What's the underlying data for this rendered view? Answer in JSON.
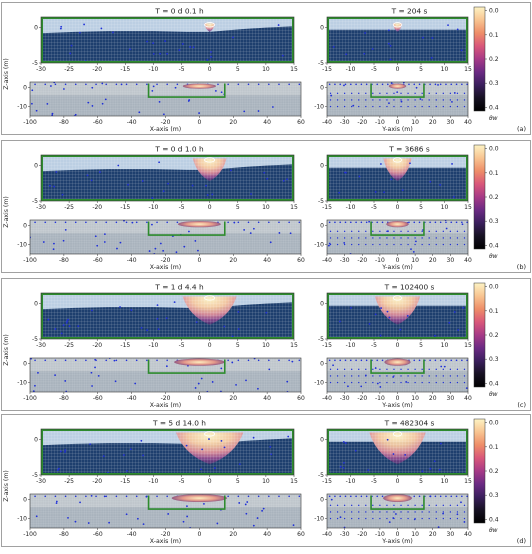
{
  "panels": [
    {
      "id": "a",
      "left_title": "T = 0 d  0.1 h",
      "right_title": "T = 204 s",
      "letter": "(a)",
      "plume": {
        "center_x": 0,
        "half_width": 1.0,
        "depth": 1.2,
        "top": 0.6
      },
      "plume_b": {
        "center_y": 0,
        "half_width": 1.0,
        "depth": 1.2,
        "top": 0.6
      },
      "ring_top": 0.3,
      "bottom_blob": 0.35
    },
    {
      "id": "b",
      "left_title": "T = 0 d  1.0 h",
      "right_title": "T = 3686 s",
      "letter": "(b)",
      "plume": {
        "center_x": 0,
        "half_width": 3.0,
        "depth": 3.2,
        "top": 1.0
      },
      "plume_b": {
        "center_y": 0,
        "half_width": 3.0,
        "depth": 3.2,
        "top": 1.0
      },
      "ring_top": 0.3,
      "bottom_blob": 0.55
    },
    {
      "id": "c",
      "left_title": "T = 1 d  4.4 h",
      "right_title": "T = 102400 s",
      "letter": "(c)",
      "plume": {
        "center_x": 0,
        "half_width": 4.8,
        "depth": 4.0,
        "top": 1.0
      },
      "plume_b": {
        "center_y": 0,
        "half_width": 4.8,
        "depth": 4.0,
        "top": 1.0
      },
      "ring_top": 0.9,
      "bottom_blob": 0.7
    },
    {
      "id": "d",
      "left_title": "T = 5 d 14.0 h",
      "right_title": "T = 482304 s",
      "letter": "(d)",
      "plume": {
        "center_x": 0,
        "half_width": 6.0,
        "depth": 4.5,
        "top": 1.0
      },
      "plume_b": {
        "center_y": 0,
        "half_width": 6.0,
        "depth": 4.5,
        "top": 1.0
      },
      "ring_top": 1.0,
      "bottom_blob": 0.8
    }
  ],
  "axes": {
    "x_top": {
      "range": [
        -30,
        15
      ],
      "ticks": [
        "-30",
        "-25",
        "-20",
        "-15",
        "-10",
        "-5",
        "0",
        "5",
        "10",
        "15"
      ]
    },
    "x_bottom": {
      "range": [
        -100,
        60
      ],
      "ticks": [
        "-100",
        "-80",
        "-60",
        "-40",
        "-20",
        "0",
        "20",
        "40",
        "60"
      ]
    },
    "y_top": {
      "range": [
        -15,
        15
      ],
      "ticks": [
        "-15",
        "-10",
        "-5",
        "0",
        "5",
        "10",
        "15"
      ]
    },
    "y_bottom": {
      "range": [
        -40,
        40
      ],
      "ticks": [
        "-40",
        "-30",
        "-20",
        "-10",
        "0",
        "10",
        "20",
        "30",
        "40"
      ]
    },
    "z_top": {
      "range": [
        -5,
        1.5
      ],
      "ticks": [
        "0",
        "-5"
      ]
    },
    "z_bottom": {
      "range": [
        -15,
        3
      ],
      "ticks": [
        "0",
        "-10"
      ]
    },
    "xlabel": "X-axis (m)",
    "ylabel": "Y-axis (m)",
    "zlabel": "Z-axis (m)"
  },
  "colorbar": {
    "label": "θw",
    "ticks": [
      "0.0",
      "0.1",
      "0.2",
      "0.3",
      "0.4"
    ],
    "stops": [
      "#fdf3c4",
      "#f8c491",
      "#ee8e68",
      "#d9577a",
      "#a63a86",
      "#6b2a83",
      "#3a1f5c",
      "#161122",
      "#000000"
    ]
  },
  "colors": {
    "saturated": "#1e3f6e",
    "dry_top": "#bccfe3",
    "dry_bottom": "#bfc6cc",
    "frame": "#2e8b2e",
    "points": "#2030d8",
    "grid": "#ffffff"
  }
}
